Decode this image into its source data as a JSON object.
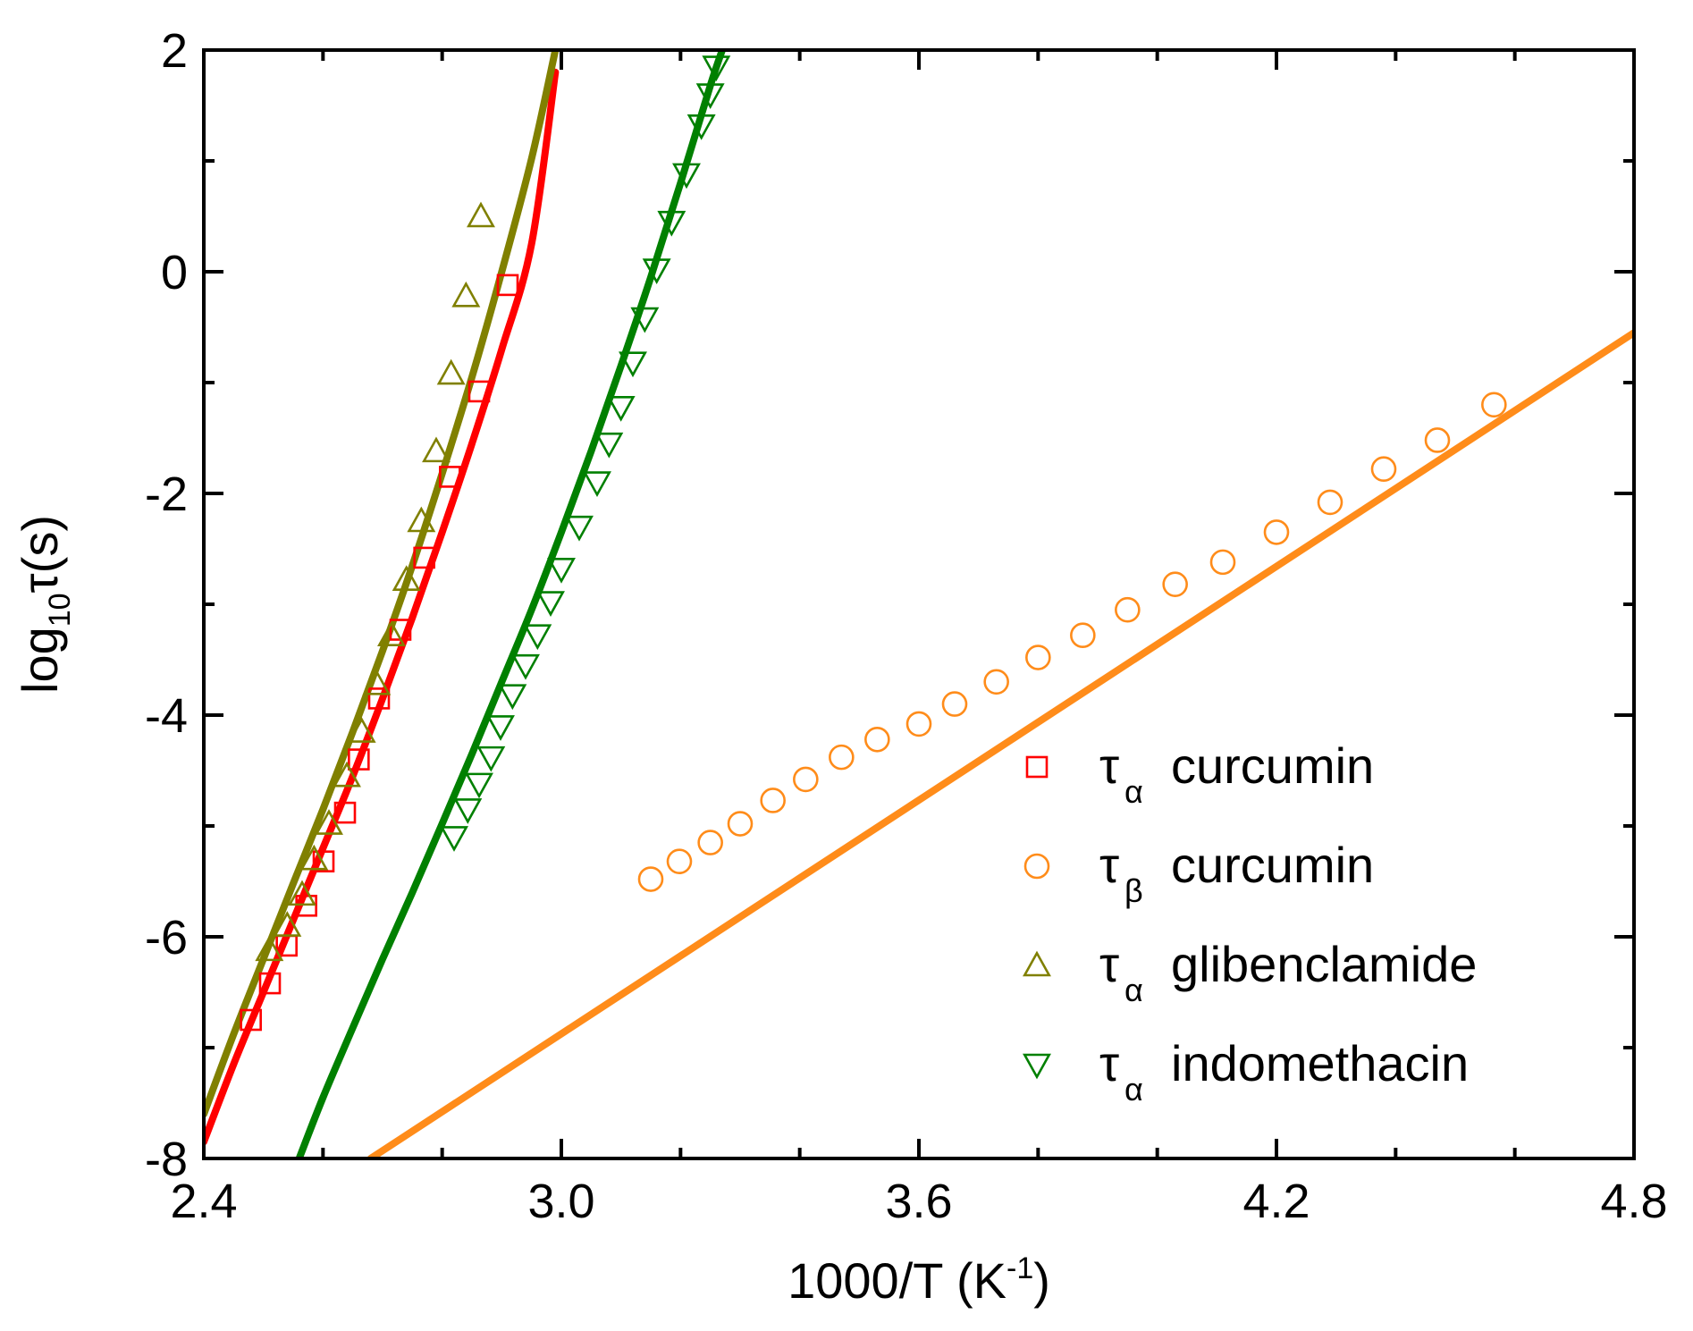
{
  "chart_data": {
    "type": "scatter",
    "xlabel": "1000/T (K",
    "xlabel_sup": "-1",
    "xlabel_close": ")",
    "ylabel": "log",
    "ylabel_sub": "10",
    "ylabel_rest": "τ(s)",
    "xlim": [
      2.4,
      4.8
    ],
    "ylim": [
      -8,
      2
    ],
    "xticks": [
      2.4,
      3.0,
      3.6,
      4.2,
      4.8
    ],
    "xtick_labels": [
      "2.4",
      "3.0",
      "3.6",
      "4.2",
      "4.8"
    ],
    "yticks": [
      -8,
      -6,
      -4,
      -2,
      0,
      2
    ],
    "ytick_labels": [
      "-8",
      "-6",
      "-4",
      "-2",
      "0",
      "2"
    ],
    "grid": false,
    "legend_position": "bottom-right",
    "series": [
      {
        "id": "alpha-curcumin",
        "name": "curcumin",
        "legend_symbol": "τ",
        "legend_sub": "α",
        "marker": "square",
        "color": "#ff0000",
        "points": [
          [
            2.479,
            -6.75
          ],
          [
            2.511,
            -6.42
          ],
          [
            2.539,
            -6.08
          ],
          [
            2.572,
            -5.72
          ],
          [
            2.601,
            -5.32
          ],
          [
            2.637,
            -4.88
          ],
          [
            2.66,
            -4.4
          ],
          [
            2.694,
            -3.85
          ],
          [
            2.73,
            -3.23
          ],
          [
            2.77,
            -2.58
          ],
          [
            2.813,
            -1.85
          ],
          [
            2.862,
            -1.08
          ],
          [
            2.91,
            -0.12
          ]
        ],
        "fit": {
          "color": "#ff0000",
          "points": [
            [
              2.4,
              -7.85
            ],
            [
              2.45,
              -7.15
            ],
            [
              2.5,
              -6.5
            ],
            [
              2.55,
              -5.85
            ],
            [
              2.6,
              -5.2
            ],
            [
              2.65,
              -4.55
            ],
            [
              2.7,
              -3.85
            ],
            [
              2.75,
              -3.12
            ],
            [
              2.8,
              -2.35
            ],
            [
              2.85,
              -1.55
            ],
            [
              2.9,
              -0.7
            ],
            [
              2.95,
              0.25
            ],
            [
              2.99,
              1.8
            ]
          ]
        }
      },
      {
        "id": "beta-curcumin",
        "name": "curcumin",
        "legend_symbol": "τ",
        "legend_sub": "β",
        "marker": "circle",
        "color": "#ff8c1a",
        "points": [
          [
            3.15,
            -5.48
          ],
          [
            3.198,
            -5.32
          ],
          [
            3.25,
            -5.15
          ],
          [
            3.3,
            -4.98
          ],
          [
            3.355,
            -4.77
          ],
          [
            3.41,
            -4.58
          ],
          [
            3.47,
            -4.38
          ],
          [
            3.53,
            -4.22
          ],
          [
            3.6,
            -4.08
          ],
          [
            3.66,
            -3.9
          ],
          [
            3.73,
            -3.7
          ],
          [
            3.8,
            -3.48
          ],
          [
            3.875,
            -3.28
          ],
          [
            3.95,
            -3.05
          ],
          [
            4.03,
            -2.82
          ],
          [
            4.11,
            -2.62
          ],
          [
            4.2,
            -2.35
          ],
          [
            4.29,
            -2.08
          ],
          [
            4.38,
            -1.78
          ],
          [
            4.47,
            -1.52
          ],
          [
            4.565,
            -1.2
          ]
        ],
        "fit": {
          "color": "#ff8c1a",
          "points": [
            [
              2.68,
              -8.0
            ],
            [
              4.8,
              -0.55
            ]
          ]
        }
      },
      {
        "id": "alpha-glibenclamide",
        "name": "glibenclamide",
        "legend_symbol": "τ",
        "legend_sub": "α",
        "marker": "triangle-up",
        "color": "#808000",
        "points": [
          [
            2.51,
            -6.12
          ],
          [
            2.54,
            -5.9
          ],
          [
            2.565,
            -5.62
          ],
          [
            2.585,
            -5.3
          ],
          [
            2.61,
            -4.98
          ],
          [
            2.64,
            -4.55
          ],
          [
            2.665,
            -4.15
          ],
          [
            2.69,
            -3.72
          ],
          [
            2.715,
            -3.28
          ],
          [
            2.74,
            -2.78
          ],
          [
            2.765,
            -2.25
          ],
          [
            2.79,
            -1.62
          ],
          [
            2.815,
            -0.92
          ],
          [
            2.84,
            -0.22
          ],
          [
            2.865,
            0.5
          ]
        ],
        "fit": {
          "color": "#808000",
          "points": [
            [
              2.4,
              -7.6
            ],
            [
              2.45,
              -6.88
            ],
            [
              2.5,
              -6.2
            ],
            [
              2.55,
              -5.52
            ],
            [
              2.6,
              -4.85
            ],
            [
              2.65,
              -4.15
            ],
            [
              2.7,
              -3.42
            ],
            [
              2.75,
              -2.65
            ],
            [
              2.8,
              -1.82
            ],
            [
              2.85,
              -0.95
            ],
            [
              2.9,
              -0.0
            ],
            [
              2.95,
              1.02
            ],
            [
              2.99,
              2.0
            ]
          ]
        }
      },
      {
        "id": "alpha-indomethacin",
        "name": "indomethacin",
        "legend_symbol": "τ",
        "legend_sub": "α",
        "marker": "triangle-down",
        "color": "#008000",
        "points": [
          [
            2.82,
            -5.1
          ],
          [
            2.843,
            -4.85
          ],
          [
            2.862,
            -4.62
          ],
          [
            2.882,
            -4.38
          ],
          [
            2.898,
            -4.1
          ],
          [
            2.918,
            -3.82
          ],
          [
            2.94,
            -3.55
          ],
          [
            2.96,
            -3.28
          ],
          [
            2.982,
            -2.98
          ],
          [
            3.0,
            -2.68
          ],
          [
            3.03,
            -2.3
          ],
          [
            3.06,
            -1.9
          ],
          [
            3.08,
            -1.55
          ],
          [
            3.1,
            -1.22
          ],
          [
            3.12,
            -0.82
          ],
          [
            3.14,
            -0.42
          ],
          [
            3.16,
            0.02
          ],
          [
            3.185,
            0.45
          ],
          [
            3.21,
            0.88
          ],
          [
            3.235,
            1.32
          ],
          [
            3.25,
            1.6
          ],
          [
            3.26,
            1.85
          ]
        ],
        "fit": {
          "color": "#008000",
          "points": [
            [
              2.56,
              -8.0
            ],
            [
              2.6,
              -7.45
            ],
            [
              2.65,
              -6.82
            ],
            [
              2.7,
              -6.2
            ],
            [
              2.75,
              -5.6
            ],
            [
              2.8,
              -4.98
            ],
            [
              2.85,
              -4.35
            ],
            [
              2.9,
              -3.7
            ],
            [
              2.95,
              -3.05
            ],
            [
              3.0,
              -2.35
            ],
            [
              3.05,
              -1.62
            ],
            [
              3.1,
              -0.85
            ],
            [
              3.15,
              -0.05
            ],
            [
              3.2,
              0.8
            ],
            [
              3.25,
              1.68
            ],
            [
              3.27,
              2.0
            ]
          ]
        }
      }
    ]
  }
}
